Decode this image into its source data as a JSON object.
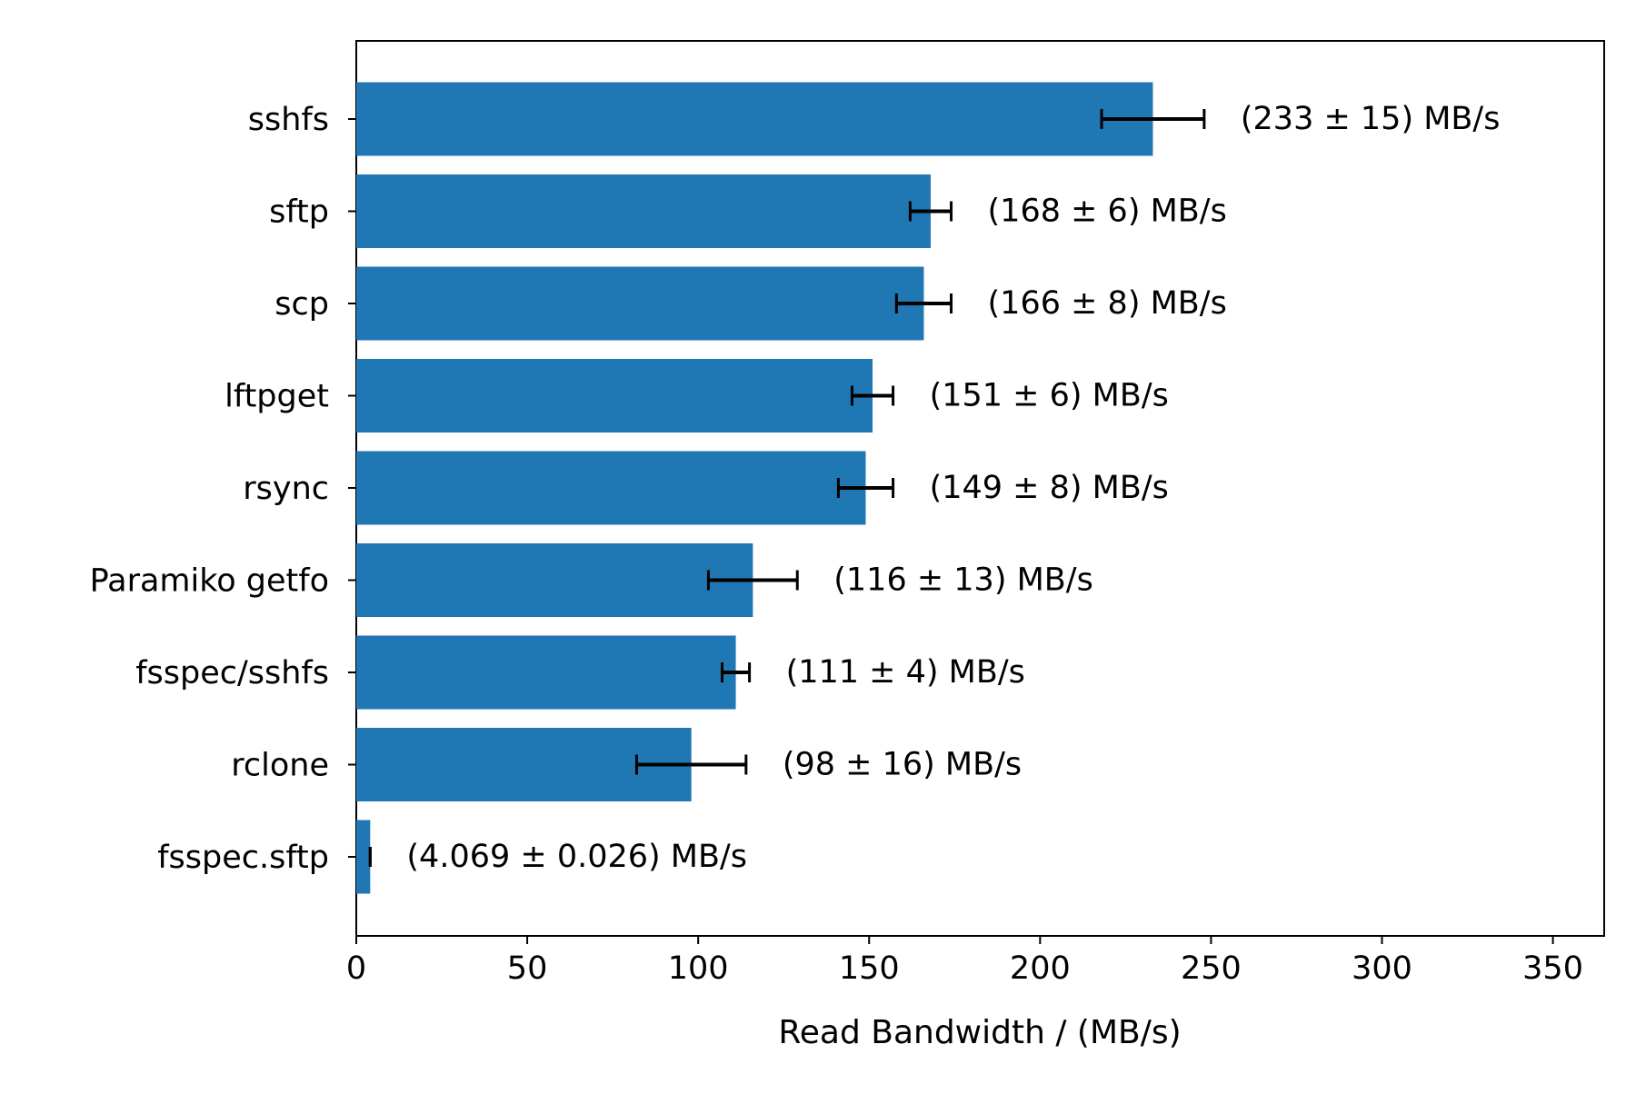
{
  "chart_data": {
    "type": "bar",
    "orientation": "horizontal",
    "categories": [
      "sshfs",
      "sftp",
      "scp",
      "lftpget",
      "rsync",
      "Paramiko getfo",
      "fsspec/sshfs",
      "rclone",
      "fsspec.sftp"
    ],
    "values": [
      233,
      168,
      166,
      151,
      149,
      116,
      111,
      98,
      4.069
    ],
    "errors": [
      15,
      6,
      8,
      6,
      8,
      13,
      4,
      16,
      0.026
    ],
    "value_labels": [
      "(233 ± 15) MB/s",
      "(168 ± 6) MB/s",
      "(166 ± 8) MB/s",
      "(151 ± 6) MB/s",
      "(149 ± 8) MB/s",
      "(116 ± 13) MB/s",
      "(111 ± 4) MB/s",
      "(98 ± 16) MB/s",
      "(4.069 ± 0.026) MB/s"
    ],
    "title": "",
    "xlabel": "Read Bandwidth / (MB/s)",
    "ylabel": "",
    "xlim": [
      0,
      365
    ],
    "xticks": [
      0,
      50,
      100,
      150,
      200,
      250,
      300,
      350
    ],
    "xtick_labels": [
      "0",
      "50",
      "100",
      "150",
      "200",
      "250",
      "300",
      "350"
    ],
    "grid": false,
    "legend": "none",
    "bar_color": "#1f77b4",
    "error_color": "#000000"
  }
}
